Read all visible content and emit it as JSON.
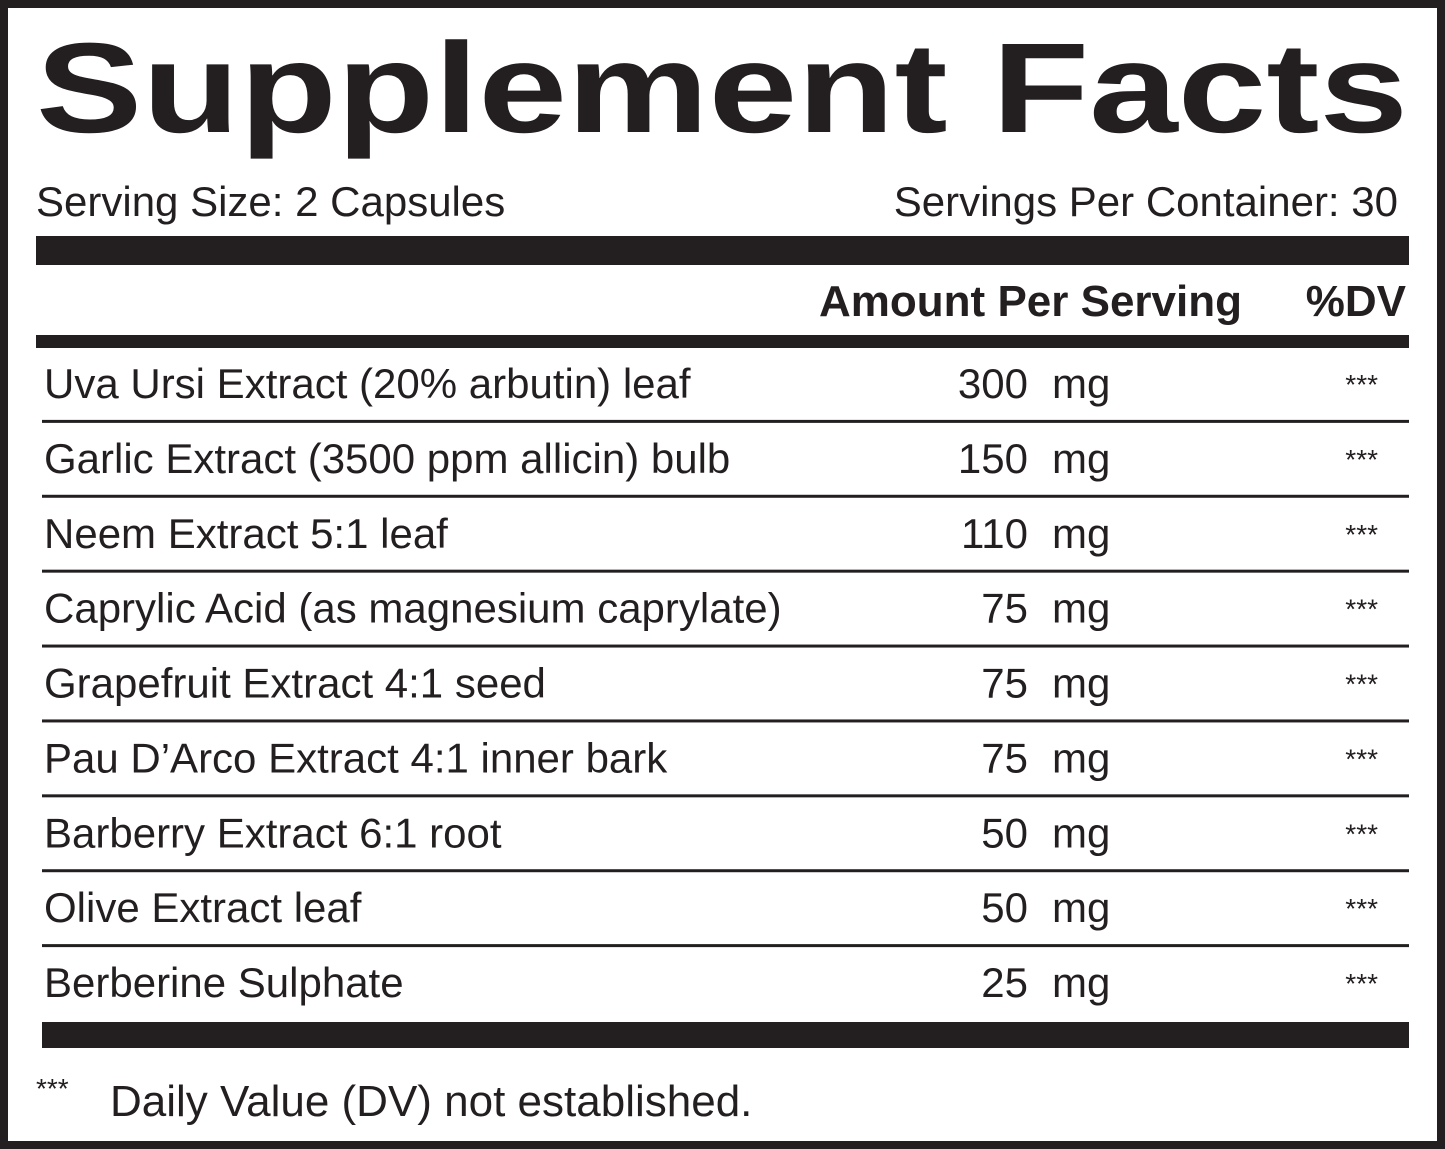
{
  "title": "Supplement Facts",
  "serving_size": "Serving Size: 2 Capsules",
  "servings_per_container": "Servings Per Container: 30",
  "header": {
    "amount": "Amount Per Serving",
    "dv": "%DV"
  },
  "ingredients": [
    {
      "name": "Uva Ursi Extract (20% arbutin) leaf",
      "amount": 300,
      "unit": "mg",
      "dv": "***"
    },
    {
      "name": "Garlic Extract (3500 ppm allicin) bulb",
      "amount": 150,
      "unit": "mg",
      "dv": "***"
    },
    {
      "name": "Neem Extract 5:1 leaf",
      "amount": 110,
      "unit": "mg",
      "dv": "***"
    },
    {
      "name": "Caprylic Acid (as magnesium caprylate)",
      "amount": 75,
      "unit": "mg",
      "dv": "***"
    },
    {
      "name": "Grapefruit Extract 4:1 seed",
      "amount": 75,
      "unit": "mg",
      "dv": "***"
    },
    {
      "name": "Pau D’Arco Extract 4:1 inner bark",
      "amount": 75,
      "unit": "mg",
      "dv": "***"
    },
    {
      "name": "Barberry Extract 6:1 root",
      "amount": 50,
      "unit": "mg",
      "dv": "***"
    },
    {
      "name": "Olive Extract leaf",
      "amount": 50,
      "unit": "mg",
      "dv": "***"
    },
    {
      "name": "Berberine Sulphate",
      "amount": 25,
      "unit": "mg",
      "dv": "***"
    }
  ],
  "footnote": {
    "marker": "***",
    "text": "Daily Value (DV) not established."
  }
}
